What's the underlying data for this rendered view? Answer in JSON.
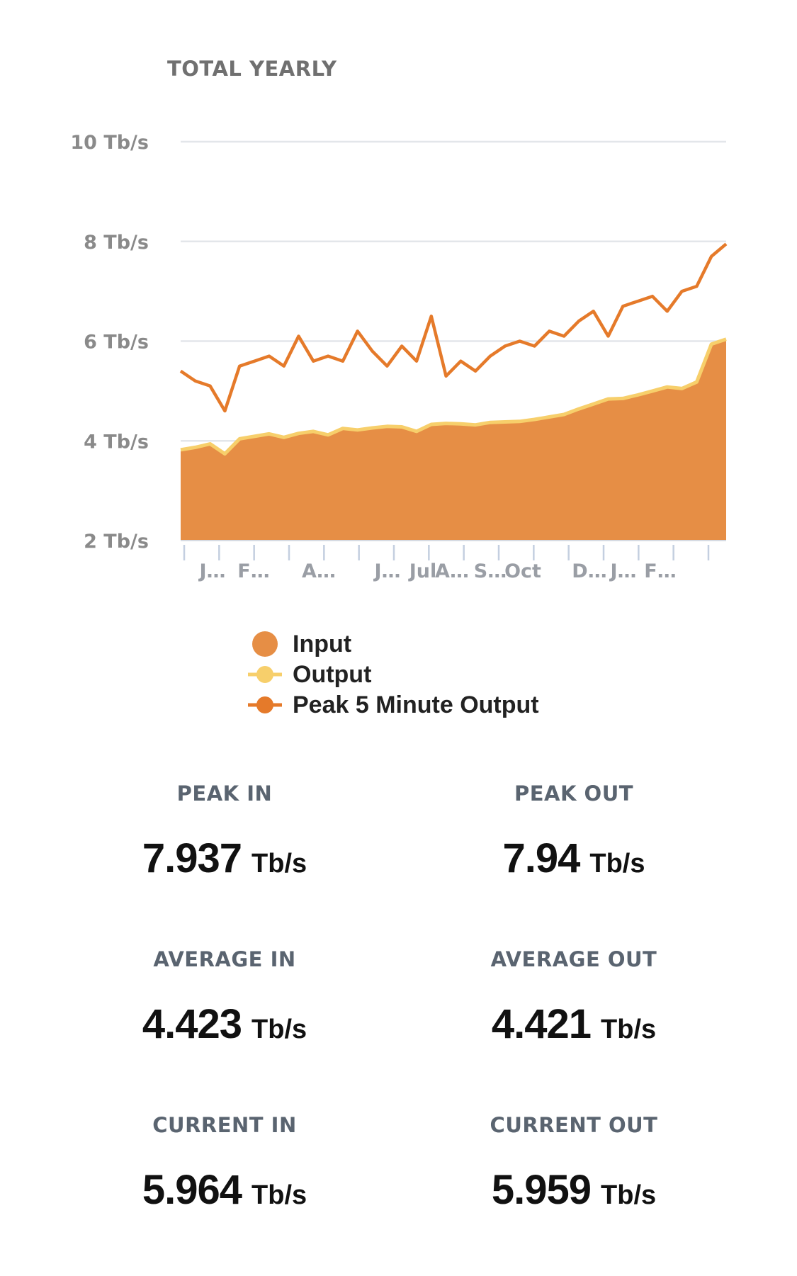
{
  "page": {
    "title": "TOTAL YEARLY"
  },
  "colors": {
    "input": "#e68e45",
    "output": "#f7cf6b",
    "peak": "#e57a2a",
    "grid": "#e3e6ea",
    "axis_label": "#8a8a8a",
    "tick": "#c4cfe0"
  },
  "legend": {
    "items": [
      {
        "label": "Input",
        "icon": "filled-circle-icon"
      },
      {
        "label": "Output",
        "icon": "line-circle-icon"
      },
      {
        "label": "Peak 5 Minute Output",
        "icon": "line-circle-icon"
      }
    ]
  },
  "chart_data": {
    "type": "area",
    "title": "TOTAL YEARLY",
    "xlabel": "",
    "ylabel": "",
    "ylim": [
      2,
      10
    ],
    "yticks": [
      2,
      4,
      6,
      8,
      10
    ],
    "ytick_labels": [
      "2 Tb/s",
      "4 Tb/s",
      "6 Tb/s",
      "8 Tb/s",
      "10 Tb/s"
    ],
    "x_tick_labels": [
      "J…",
      "F…",
      "A…",
      "J…",
      "Jul",
      "A…",
      "S…",
      "Oct",
      "D…",
      "J…",
      "F…"
    ],
    "x_tick_count": 16,
    "grid": true,
    "legend_position": "bottom",
    "series": [
      {
        "name": "Input",
        "style": "area",
        "values": [
          3.8,
          3.85,
          3.92,
          3.72,
          4.02,
          4.07,
          4.12,
          4.05,
          4.13,
          4.17,
          4.1,
          4.23,
          4.2,
          4.24,
          4.27,
          4.26,
          4.17,
          4.31,
          4.33,
          4.32,
          4.3,
          4.35,
          4.36,
          4.37,
          4.41,
          4.46,
          4.51,
          4.62,
          4.72,
          4.82,
          4.83,
          4.9,
          4.98,
          5.06,
          5.03,
          5.16,
          5.92,
          6.02
        ]
      },
      {
        "name": "Output",
        "style": "line",
        "values": [
          3.82,
          3.87,
          3.94,
          3.74,
          4.04,
          4.09,
          4.14,
          4.07,
          4.15,
          4.19,
          4.12,
          4.25,
          4.22,
          4.26,
          4.29,
          4.28,
          4.19,
          4.33,
          4.35,
          4.34,
          4.32,
          4.37,
          4.38,
          4.39,
          4.43,
          4.48,
          4.53,
          4.64,
          4.74,
          4.84,
          4.85,
          4.92,
          5.0,
          5.08,
          5.05,
          5.18,
          5.94,
          6.04
        ]
      },
      {
        "name": "Peak 5 Minute Output",
        "style": "line",
        "values": [
          5.4,
          5.2,
          5.1,
          4.6,
          5.5,
          5.6,
          5.7,
          5.5,
          6.1,
          5.6,
          5.7,
          5.6,
          6.2,
          5.8,
          5.5,
          5.9,
          5.6,
          6.5,
          5.3,
          5.6,
          5.4,
          5.7,
          5.9,
          6.0,
          5.9,
          6.2,
          6.1,
          6.4,
          6.6,
          6.1,
          6.7,
          6.8,
          6.9,
          6.6,
          7.0,
          7.1,
          7.7,
          7.95
        ]
      }
    ]
  },
  "stats": {
    "peak_in": {
      "label": "PEAK IN",
      "value": "7.937",
      "unit": "Tb/s"
    },
    "peak_out": {
      "label": "PEAK OUT",
      "value": "7.94",
      "unit": "Tb/s"
    },
    "average_in": {
      "label": "AVERAGE IN",
      "value": "4.423",
      "unit": "Tb/s"
    },
    "average_out": {
      "label": "AVERAGE OUT",
      "value": "4.421",
      "unit": "Tb/s"
    },
    "current_in": {
      "label": "CURRENT IN",
      "value": "5.964",
      "unit": "Tb/s"
    },
    "current_out": {
      "label": "CURRENT OUT",
      "value": "5.959",
      "unit": "Tb/s"
    }
  }
}
